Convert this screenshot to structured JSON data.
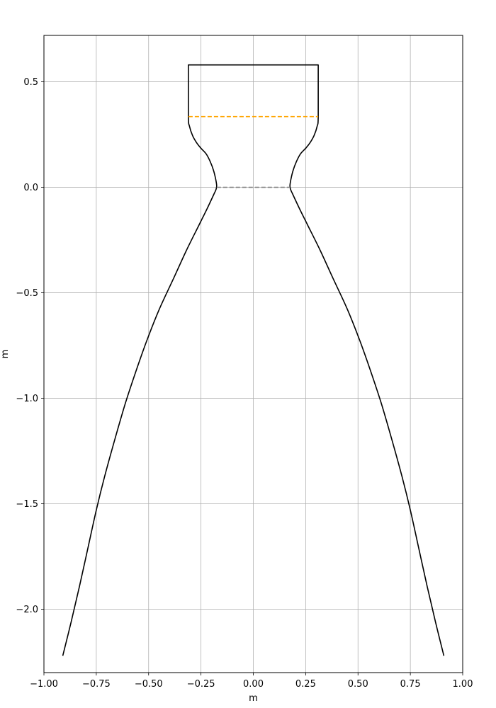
{
  "chart_data": {
    "type": "line",
    "title": "",
    "xlabel": "m",
    "ylabel": "m",
    "xlim": [
      -1.0,
      1.0
    ],
    "ylim": [
      -2.3,
      0.72
    ],
    "grid": true,
    "legend": "none",
    "xticks": [
      -1.0,
      -0.75,
      -0.5,
      -0.25,
      0.0,
      0.25,
      0.5,
      0.75,
      1.0
    ],
    "xtick_labels": [
      "−1.00",
      "−0.75",
      "−0.50",
      "−0.25",
      "0.00",
      "0.25",
      "0.50",
      "0.75",
      "1.00"
    ],
    "yticks": [
      0.5,
      0.0,
      -0.5,
      -1.0,
      -1.5,
      -2.0
    ],
    "ytick_labels": [
      "0.5",
      "0.0",
      "−0.5",
      "−1.0",
      "−1.5",
      "−2.0"
    ],
    "series": [
      {
        "kind": "contour-right",
        "color": "#000000",
        "style": "solid",
        "points": [
          [
            0.0,
            0.58
          ],
          [
            0.31,
            0.58
          ],
          [
            0.31,
            0.335
          ],
          [
            0.305,
            0.29
          ],
          [
            0.29,
            0.245
          ],
          [
            0.27,
            0.21
          ],
          [
            0.25,
            0.185
          ],
          [
            0.225,
            0.158
          ],
          [
            0.205,
            0.12
          ],
          [
            0.19,
            0.08
          ],
          [
            0.18,
            0.04
          ],
          [
            0.175,
            0.008
          ],
          [
            0.178,
            -0.01
          ],
          [
            0.187,
            -0.03
          ],
          [
            0.22,
            -0.1
          ],
          [
            0.26,
            -0.18
          ],
          [
            0.32,
            -0.3
          ],
          [
            0.38,
            -0.43
          ],
          [
            0.45,
            -0.58
          ],
          [
            0.51,
            -0.73
          ],
          [
            0.56,
            -0.87
          ],
          [
            0.61,
            -1.02
          ],
          [
            0.66,
            -1.19
          ],
          [
            0.71,
            -1.37
          ],
          [
            0.75,
            -1.53
          ],
          [
            0.79,
            -1.71
          ],
          [
            0.83,
            -1.89
          ],
          [
            0.87,
            -2.06
          ],
          [
            0.91,
            -2.22
          ]
        ]
      },
      {
        "kind": "contour-left",
        "color": "#000000",
        "style": "solid",
        "points": [
          [
            0.0,
            0.58
          ],
          [
            -0.31,
            0.58
          ],
          [
            -0.31,
            0.335
          ],
          [
            -0.305,
            0.29
          ],
          [
            -0.29,
            0.245
          ],
          [
            -0.27,
            0.21
          ],
          [
            -0.25,
            0.185
          ],
          [
            -0.225,
            0.158
          ],
          [
            -0.205,
            0.12
          ],
          [
            -0.19,
            0.08
          ],
          [
            -0.18,
            0.04
          ],
          [
            -0.175,
            0.008
          ],
          [
            -0.178,
            -0.01
          ],
          [
            -0.187,
            -0.03
          ],
          [
            -0.22,
            -0.1
          ],
          [
            -0.26,
            -0.18
          ],
          [
            -0.32,
            -0.3
          ],
          [
            -0.38,
            -0.43
          ],
          [
            -0.45,
            -0.58
          ],
          [
            -0.51,
            -0.73
          ],
          [
            -0.56,
            -0.87
          ],
          [
            -0.61,
            -1.02
          ],
          [
            -0.66,
            -1.19
          ],
          [
            -0.71,
            -1.37
          ],
          [
            -0.75,
            -1.53
          ],
          [
            -0.79,
            -1.71
          ],
          [
            -0.83,
            -1.89
          ],
          [
            -0.87,
            -2.06
          ],
          [
            -0.91,
            -2.22
          ]
        ]
      },
      {
        "kind": "chamber-line",
        "color": "#ffa500",
        "style": "dashed",
        "points": [
          [
            -0.31,
            0.335
          ],
          [
            0.31,
            0.335
          ]
        ]
      },
      {
        "kind": "throat-line",
        "color": "#808080",
        "style": "dashed",
        "points": [
          [
            -0.175,
            0.0
          ],
          [
            0.175,
            0.0
          ]
        ]
      }
    ]
  }
}
